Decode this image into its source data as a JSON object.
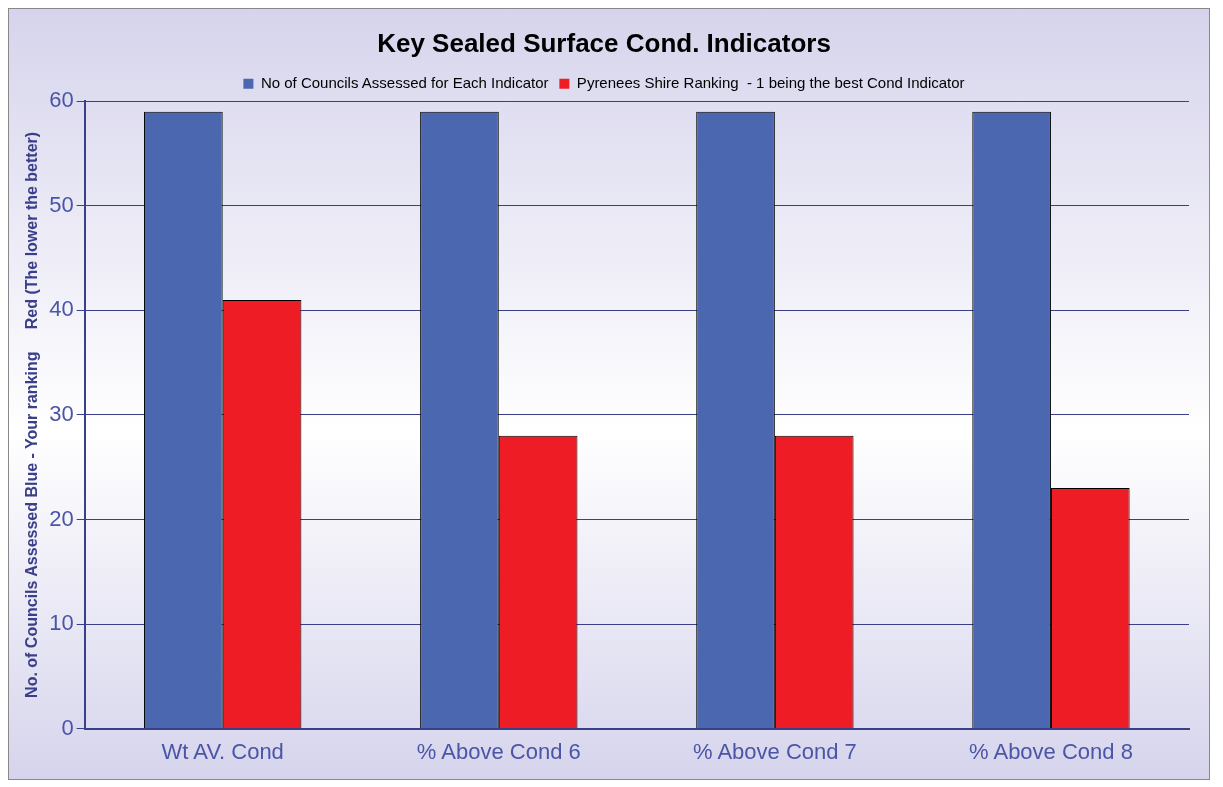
{
  "chart_data": {
    "type": "bar",
    "title": "Key Sealed Surface Cond. Indicators",
    "ylabel": "No. of Councils Assessed Blue - Your ranking     Red (The lower the better)",
    "categories": [
      "Wt AV. Cond",
      "% Above Cond 6",
      "% Above Cond 7",
      "% Above Cond 8"
    ],
    "series": [
      {
        "name": "No of Councils Assessed for Each Indicator",
        "color": "#4a67b0",
        "values": [
          59,
          59,
          59,
          59
        ]
      },
      {
        "name": "Pyrenees Shire Ranking  - 1 being the best Cond Indicator",
        "color": "#ee1c25",
        "values": [
          41,
          28,
          28,
          23
        ]
      }
    ],
    "ylim": [
      0,
      60
    ],
    "yticks": [
      0,
      10,
      20,
      30,
      40,
      50,
      60
    ],
    "grid": "y",
    "legend": "top"
  }
}
